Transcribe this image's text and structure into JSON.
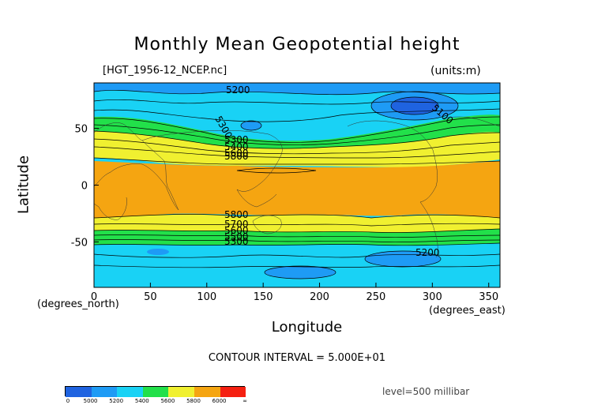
{
  "chart_data": {
    "type": "contour-map",
    "title": "Monthly Mean Geopotential height",
    "source_label": "[HGT_1956-12_NCEP.nc]",
    "units": "(units:m)",
    "xlabel": "Longitude",
    "ylabel": "Latitude",
    "x_unit": "(degrees_north)",
    "x_unit_east": "(degrees_east)",
    "xlim": [
      0,
      360
    ],
    "ylim": [
      -90,
      90
    ],
    "x_ticks": [
      "0",
      "50",
      "100",
      "150",
      "200",
      "250",
      "300",
      "350"
    ],
    "y_ticks": [
      "50",
      "0",
      "-50"
    ],
    "contour_labels": [
      "5200",
      "5300",
      "5100",
      "5300",
      "5400",
      "5600",
      "5800",
      "5800",
      "5700",
      "5600",
      "5500",
      "5300",
      "5200"
    ],
    "contour_interval": "CONTOUR INTERVAL = 5.000E+01",
    "level": "level=500 millibar",
    "colorbar": {
      "ticks": [
        "0",
        "5000",
        "5200",
        "5400",
        "5600",
        "5800",
        "6000",
        "∞"
      ],
      "colors": [
        "#1f63e0",
        "#1e9bf5",
        "#19d2f5",
        "#22e04a",
        "#f0f030",
        "#f5a511",
        "#f52011"
      ]
    }
  }
}
